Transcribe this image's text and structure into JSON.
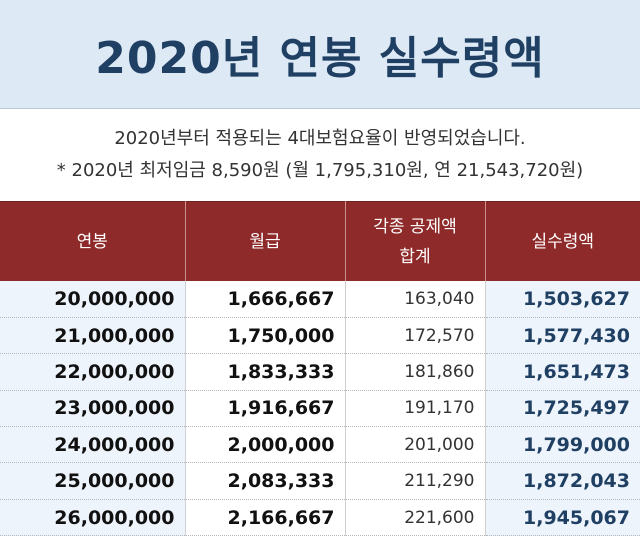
{
  "title": "2020년 연봉 실수령액",
  "notes": {
    "line1": "2020년부터 적용되는 4대보험요율이 반영되었습니다.",
    "line2": "* 2020년 최저임금 8,590원 (월 1,795,310원, 연 21,543,720원)"
  },
  "table": {
    "headers": {
      "salary": "연봉",
      "monthly": "월급",
      "deduction_line1": "각종 공제액",
      "deduction_line2": "합계",
      "net": "실수령액"
    },
    "rows": [
      {
        "salary": "20,000,000",
        "monthly": "1,666,667",
        "deduction": "163,040",
        "net": "1,503,627"
      },
      {
        "salary": "21,000,000",
        "monthly": "1,750,000",
        "deduction": "172,570",
        "net": "1,577,430"
      },
      {
        "salary": "22,000,000",
        "monthly": "1,833,333",
        "deduction": "181,860",
        "net": "1,651,473"
      },
      {
        "salary": "23,000,000",
        "monthly": "1,916,667",
        "deduction": "191,170",
        "net": "1,725,497"
      },
      {
        "salary": "24,000,000",
        "monthly": "2,000,000",
        "deduction": "201,000",
        "net": "1,799,000"
      },
      {
        "salary": "25,000,000",
        "monthly": "2,083,333",
        "deduction": "211,290",
        "net": "1,872,043"
      },
      {
        "salary": "26,000,000",
        "monthly": "2,166,667",
        "deduction": "221,600",
        "net": "1,945,067"
      }
    ]
  },
  "colors": {
    "title_band": "#dde9f5",
    "title_text": "#1f3f63",
    "header_bg": "#8f2a2a",
    "net_text": "#1f3f63"
  }
}
